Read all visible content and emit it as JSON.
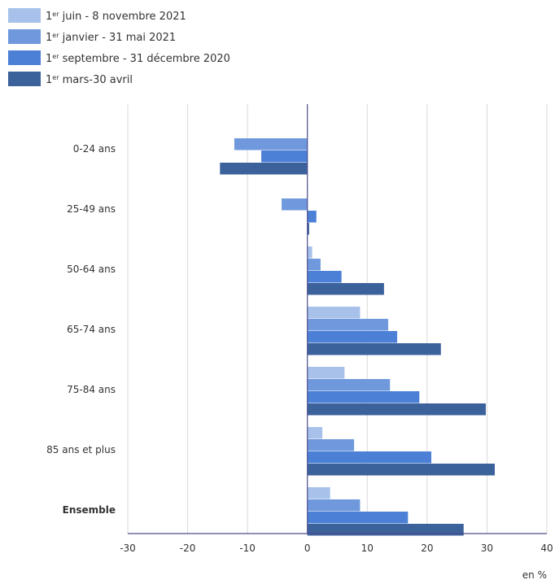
{
  "colors": {
    "series1": "#a8c1ea",
    "series2": "#6f99dc",
    "series3": "#4b80d6",
    "series4": "#3c629c",
    "grid": "#d9d9d9",
    "axis": "#4b4b8c",
    "text": "#333333"
  },
  "chart_data": {
    "type": "bar",
    "orientation": "horizontal",
    "title": "",
    "xlabel": "",
    "ylabel": "",
    "unit_label": "en %",
    "xlim": [
      -30,
      40
    ],
    "xticks": [
      "-30",
      "-20",
      "-10",
      "0",
      "10",
      "20",
      "30",
      "40"
    ],
    "grid": true,
    "legend_position": "top-left",
    "categories": [
      "0-24 ans",
      "25-49 ans",
      "50-64 ans",
      "65-74 ans",
      "75-84 ans",
      "85 ans et plus",
      "Ensemble"
    ],
    "bold_categories": [
      "Ensemble"
    ],
    "series": [
      {
        "name_prefix": "1",
        "name_sup": "er",
        "name_rest": " juin - 8 novembre 2021",
        "values": [
          0,
          0,
          0.8,
          8.8,
          6.2,
          2.5,
          3.8
        ]
      },
      {
        "name_prefix": "1",
        "name_sup": "er",
        "name_rest": " janvier - 31 mai 2021",
        "values": [
          -12.2,
          -4.3,
          2.2,
          13.5,
          13.8,
          7.8,
          8.8
        ]
      },
      {
        "name_prefix": "1",
        "name_sup": "er",
        "name_rest": " septembre - 31 décembre 2020",
        "values": [
          -7.7,
          1.5,
          5.7,
          15.0,
          18.7,
          20.7,
          16.8
        ]
      },
      {
        "name_prefix": "1",
        "name_sup": "er",
        "name_rest": " mars-30 avril",
        "values": [
          -14.6,
          0.3,
          12.8,
          22.3,
          29.8,
          31.3,
          26.1
        ]
      }
    ]
  }
}
